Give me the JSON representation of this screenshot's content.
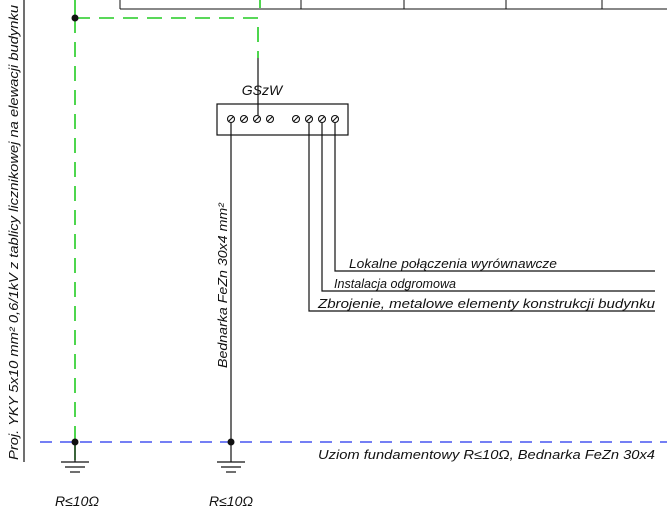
{
  "labels": {
    "vertical_cable": "Proj. YKY 5x10 mm² 0,6/1kV z tablicy licznikowej na elewacji budynku",
    "bar_label": "GSzW",
    "bednarka": "Bednarka FeZn 30x4 mm²",
    "local_bonding": "Lokalne połączenia wyrównawcze",
    "lightning": "Instalacja odgromowa",
    "rebar": "Zbrojenie, metalowe elementy konstrukcji budynku",
    "foundation": "Uziom fundamentowy R≤10Ω, Bednarka FeZn 30x4",
    "resistance_left": "R≤10Ω",
    "resistance_right": "R≤10Ω"
  },
  "colors": {
    "pe_conductor": "#22cc22",
    "foundation_earth": "#2233ee",
    "line": "#111111"
  }
}
